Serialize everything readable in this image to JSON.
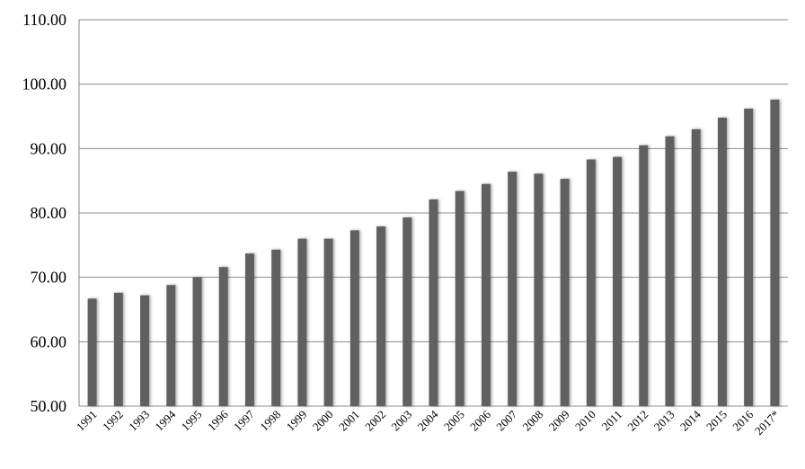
{
  "chart_data": {
    "type": "bar",
    "title": "",
    "xlabel": "",
    "ylabel": "",
    "ylim": [
      50,
      110
    ],
    "yticks": [
      "50.00",
      "60.00",
      "70.00",
      "80.00",
      "90.00",
      "100.00",
      "110.00"
    ],
    "grid": true,
    "legend": "none",
    "bar_color": "#606060",
    "categories": [
      "1991",
      "1992",
      "1993",
      "1994",
      "1995",
      "1996",
      "1997",
      "1998",
      "1999",
      "2000",
      "2001",
      "2002",
      "2003",
      "2004",
      "2005",
      "2006",
      "2007",
      "2008",
      "2009",
      "2010",
      "2011",
      "2012",
      "2013",
      "2014",
      "2015",
      "2016",
      "2017*"
    ],
    "values": [
      66.7,
      67.6,
      67.2,
      68.8,
      70.0,
      71.6,
      73.7,
      74.3,
      76.0,
      76.0,
      77.3,
      77.9,
      79.3,
      82.1,
      83.4,
      84.5,
      86.4,
      86.1,
      85.3,
      88.3,
      88.7,
      90.5,
      91.9,
      93.0,
      94.8,
      96.2,
      97.6
    ]
  }
}
